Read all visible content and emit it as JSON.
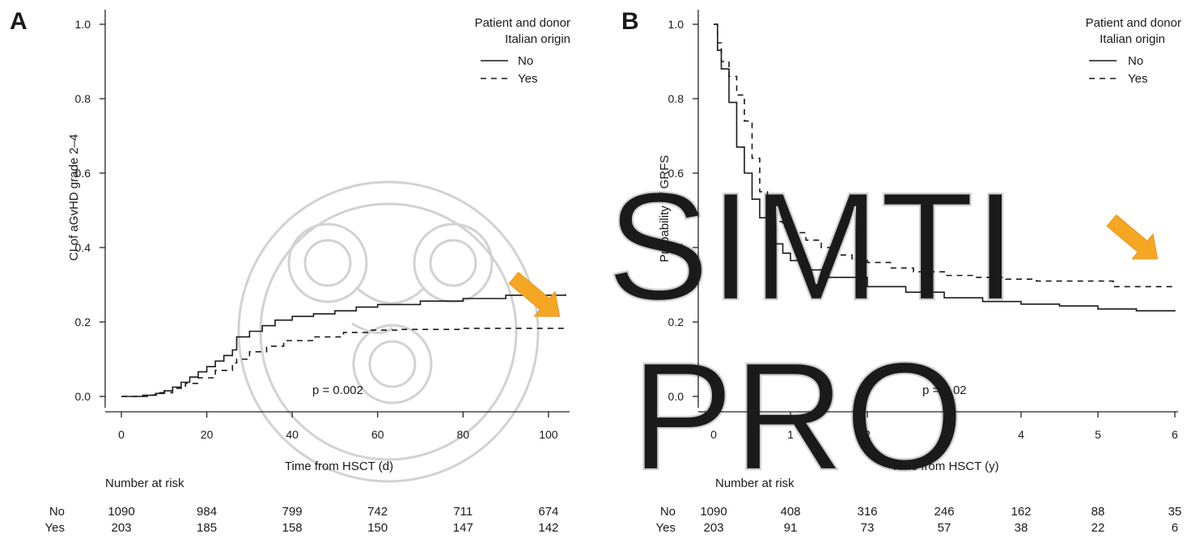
{
  "colors": {
    "axis": "#222222",
    "curve": "#1a1a1a",
    "arrow": "#f5a623",
    "watermark": "#cfcfcf"
  },
  "watermark": {
    "text_top": "SIMTI",
    "text_bottom": "PRO"
  },
  "chart_data": [
    {
      "type": "line",
      "panel_label": "A",
      "title": "",
      "xlabel": "Time from HSCT (d)",
      "ylabel": "CI of aGvHD grade 2–4",
      "xlim": [
        0,
        104
      ],
      "ylim": [
        0,
        1.0
      ],
      "xticks": [
        0,
        20,
        40,
        60,
        80,
        100
      ],
      "yticks": [
        "0.0",
        "0.2",
        "0.4",
        "0.6",
        "0.8",
        "1.0"
      ],
      "legend_title": [
        "Patient and donor",
        "Italian origin"
      ],
      "legend_position": "top-right",
      "p_value": "p = 0.002",
      "annotation": "orange arrow pointing to curve ends",
      "series": [
        {
          "name": "No",
          "line": "solid",
          "x": [
            0,
            5,
            8,
            10,
            12,
            14,
            16,
            18,
            20,
            22,
            24,
            26,
            27,
            27,
            30,
            33,
            36,
            40,
            45,
            50,
            55,
            60,
            70,
            80,
            90,
            104
          ],
          "y": [
            0,
            0.003,
            0.008,
            0.015,
            0.025,
            0.038,
            0.052,
            0.066,
            0.08,
            0.095,
            0.11,
            0.125,
            0.135,
            0.16,
            0.175,
            0.19,
            0.205,
            0.215,
            0.222,
            0.23,
            0.24,
            0.247,
            0.256,
            0.263,
            0.272,
            0.275
          ]
        },
        {
          "name": "Yes",
          "line": "dashed",
          "x": [
            0,
            7,
            9,
            12,
            15,
            18,
            22,
            26,
            27,
            30,
            34,
            38,
            45,
            52,
            58,
            65,
            80,
            104
          ],
          "y": [
            0,
            0.004,
            0.01,
            0.022,
            0.035,
            0.05,
            0.07,
            0.09,
            0.1,
            0.12,
            0.135,
            0.15,
            0.16,
            0.172,
            0.178,
            0.18,
            0.183,
            0.187
          ]
        }
      ],
      "risk_table": {
        "title": "Number at risk",
        "x": [
          0,
          20,
          40,
          60,
          80,
          100
        ],
        "rows": [
          {
            "label": "No",
            "values": [
              "1090",
              "984",
              "799",
              "742",
              "711",
              "674"
            ]
          },
          {
            "label": "Yes",
            "values": [
              "203",
              "185",
              "158",
              "150",
              "147",
              "142"
            ]
          }
        ]
      }
    },
    {
      "type": "line",
      "panel_label": "B",
      "title": "",
      "xlabel": "Time from HSCT (y)",
      "ylabel": "Probability of GRFS",
      "xlim": [
        0,
        6
      ],
      "ylim": [
        0,
        1.0
      ],
      "xticks": [
        0,
        1,
        2,
        3,
        4,
        5,
        6
      ],
      "yticks": [
        "0.0",
        "0.2",
        "0.4",
        "0.6",
        "0.8",
        "1.0"
      ],
      "legend_title": [
        "Patient and donor",
        "Italian origin"
      ],
      "legend_position": "top-right",
      "p_value": "p = 0.02",
      "annotation": "orange arrow pointing to curve ends",
      "series": [
        {
          "name": "No",
          "line": "solid",
          "x": [
            0,
            0.05,
            0.1,
            0.2,
            0.3,
            0.4,
            0.5,
            0.6,
            0.7,
            0.8,
            0.9,
            1.0,
            1.2,
            1.5,
            2.0,
            2.5,
            3.0,
            3.5,
            4.0,
            4.5,
            5.0,
            5.5,
            6.0
          ],
          "y": [
            1.0,
            0.93,
            0.88,
            0.79,
            0.67,
            0.6,
            0.53,
            0.48,
            0.44,
            0.41,
            0.385,
            0.365,
            0.34,
            0.32,
            0.295,
            0.28,
            0.265,
            0.255,
            0.248,
            0.243,
            0.235,
            0.23,
            0.228
          ]
        },
        {
          "name": "Yes",
          "line": "dashed",
          "x": [
            0,
            0.05,
            0.1,
            0.2,
            0.3,
            0.4,
            0.5,
            0.6,
            0.7,
            0.8,
            0.9,
            1.0,
            1.2,
            1.4,
            1.6,
            1.8,
            2.0,
            2.3,
            2.6,
            3.0,
            3.4,
            3.8,
            4.2,
            4.6,
            5.0,
            5.15,
            5.2,
            6.0
          ],
          "y": [
            1.0,
            0.95,
            0.9,
            0.86,
            0.81,
            0.74,
            0.64,
            0.55,
            0.5,
            0.47,
            0.455,
            0.44,
            0.42,
            0.4,
            0.38,
            0.37,
            0.36,
            0.345,
            0.335,
            0.325,
            0.32,
            0.315,
            0.31,
            0.31,
            0.31,
            0.31,
            0.295,
            0.295
          ]
        }
      ],
      "risk_table": {
        "title": "Number at risk",
        "x": [
          0,
          1,
          2,
          3,
          4,
          5,
          6
        ],
        "rows": [
          {
            "label": "No",
            "values": [
              "1090",
              "408",
              "316",
              "246",
              "162",
              "88",
              "35"
            ]
          },
          {
            "label": "Yes",
            "values": [
              "203",
              "91",
              "73",
              "57",
              "38",
              "22",
              "6"
            ]
          }
        ]
      }
    }
  ]
}
